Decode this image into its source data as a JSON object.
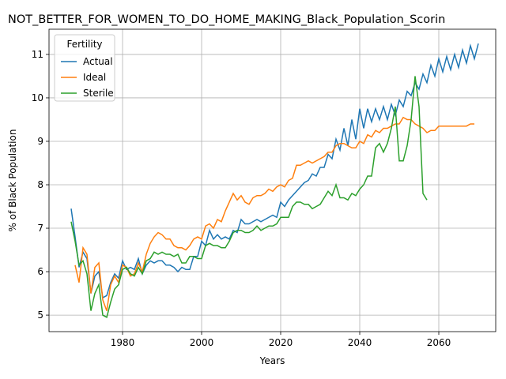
{
  "chart_data": {
    "type": "line",
    "title": "NOT_BETTER_FOR_WOMEN_TO_DO_HOME_MAKING_Black_Population_Scorin",
    "xlabel": "Years",
    "ylabel": "% of Black Population",
    "x": [
      1967,
      1968,
      1969,
      1970,
      1971,
      1972,
      1973,
      1974,
      1975,
      1976,
      1977,
      1978,
      1979,
      1980,
      1981,
      1982,
      1983,
      1984,
      1985,
      1986,
      1987,
      1988,
      1989,
      1990,
      1991,
      1992,
      1993,
      1994,
      1995,
      1996,
      1997,
      1998,
      1999,
      2000,
      2001,
      2002,
      2003,
      2004,
      2005,
      2006,
      2007,
      2008,
      2009,
      2010,
      2011,
      2012,
      2013,
      2014,
      2015,
      2016,
      2017,
      2018,
      2019,
      2020,
      2021,
      2022,
      2023,
      2024,
      2025,
      2026,
      2027,
      2028,
      2029,
      2030,
      2031,
      2032,
      2033,
      2034,
      2035,
      2036,
      2037,
      2038,
      2039,
      2040,
      2041,
      2042,
      2043,
      2044,
      2045,
      2046,
      2047,
      2048,
      2049,
      2050,
      2051,
      2052,
      2053,
      2054,
      2055,
      2056,
      2057,
      2058,
      2059,
      2060,
      2061,
      2062,
      2063,
      2064,
      2065,
      2066,
      2067,
      2068,
      2069,
      2070
    ],
    "series": [
      {
        "name": "Actual",
        "color": "#1f77b4",
        "values": [
          7.45,
          6.8,
          6.1,
          6.45,
          6.3,
          5.5,
          5.9,
          6.0,
          5.4,
          5.45,
          5.75,
          5.95,
          5.85,
          6.25,
          6.05,
          6.1,
          6.05,
          6.3,
          5.95,
          6.15,
          6.25,
          6.2,
          6.25,
          6.25,
          6.15,
          6.15,
          6.1,
          6.0,
          6.1,
          6.05,
          6.05,
          6.35,
          6.35,
          6.7,
          6.6,
          6.95,
          6.75,
          6.85,
          6.75,
          6.8,
          6.75,
          6.95,
          6.9,
          7.2,
          7.1,
          7.1,
          7.15,
          7.2,
          7.15,
          7.2,
          7.25,
          7.3,
          7.25,
          7.6,
          7.5,
          7.65,
          7.75,
          7.85,
          7.95,
          8.05,
          8.1,
          8.25,
          8.2,
          8.4,
          8.4,
          8.7,
          8.6,
          9.05,
          8.8,
          9.3,
          8.9,
          9.5,
          9.05,
          9.75,
          9.3,
          9.75,
          9.45,
          9.75,
          9.5,
          9.8,
          9.5,
          9.85,
          9.6,
          9.95,
          9.8,
          10.15,
          10.05,
          10.35,
          10.2,
          10.55,
          10.35,
          10.75,
          10.5,
          10.9,
          10.6,
          10.95,
          10.65,
          11.0,
          10.7,
          11.1,
          10.8,
          11.2,
          10.9,
          11.25
        ]
      },
      {
        "name": "Ideal",
        "color": "#ff7f0e",
        "values": [
          null,
          6.15,
          5.75,
          6.55,
          6.4,
          5.5,
          6.1,
          6.2,
          5.35,
          5.1,
          5.7,
          5.9,
          5.75,
          6.15,
          6.1,
          5.9,
          5.95,
          6.2,
          6.0,
          6.4,
          6.65,
          6.8,
          6.9,
          6.85,
          6.75,
          6.75,
          6.6,
          6.55,
          6.55,
          6.5,
          6.6,
          6.75,
          6.8,
          6.75,
          7.05,
          7.1,
          7.0,
          7.2,
          7.15,
          7.4,
          7.6,
          7.8,
          7.65,
          7.75,
          7.6,
          7.55,
          7.7,
          7.75,
          7.75,
          7.8,
          7.9,
          7.85,
          7.95,
          8.0,
          7.95,
          8.1,
          8.15,
          8.45,
          8.45,
          8.5,
          8.55,
          8.5,
          8.55,
          8.6,
          8.65,
          8.75,
          8.75,
          8.9,
          8.95,
          8.95,
          8.9,
          8.85,
          8.85,
          9.0,
          8.95,
          9.15,
          9.1,
          9.25,
          9.2,
          9.3,
          9.3,
          9.35,
          9.4,
          9.4,
          9.55,
          9.5,
          9.5,
          9.4,
          9.35,
          9.3,
          9.2,
          9.25,
          9.25,
          9.35,
          9.35,
          9.35,
          9.35,
          9.35,
          9.35,
          9.35,
          9.35,
          9.4,
          9.4,
          null
        ]
      },
      {
        "name": "Sterile",
        "color": "#2ca02c",
        "values": [
          7.15,
          6.7,
          6.15,
          6.25,
          5.95,
          5.1,
          5.5,
          5.7,
          5.0,
          4.95,
          5.3,
          5.6,
          5.7,
          6.05,
          6.1,
          5.95,
          5.9,
          6.1,
          5.95,
          6.25,
          6.3,
          6.45,
          6.4,
          6.45,
          6.4,
          6.4,
          6.35,
          6.4,
          6.2,
          6.2,
          6.35,
          6.35,
          6.3,
          6.3,
          6.6,
          6.65,
          6.6,
          6.6,
          6.55,
          6.55,
          6.7,
          6.9,
          6.95,
          6.95,
          6.9,
          6.9,
          6.95,
          7.05,
          6.95,
          7.0,
          7.05,
          7.05,
          7.1,
          7.25,
          7.25,
          7.25,
          7.5,
          7.6,
          7.6,
          7.55,
          7.55,
          7.45,
          7.5,
          7.55,
          7.7,
          7.85,
          7.75,
          8.0,
          7.7,
          7.7,
          7.65,
          7.8,
          7.75,
          7.9,
          8.0,
          8.2,
          8.2,
          8.85,
          8.95,
          8.75,
          8.95,
          9.3,
          9.8,
          8.55,
          8.55,
          8.9,
          9.5,
          10.5,
          9.8,
          7.8,
          7.65,
          null,
          null,
          null,
          null,
          null,
          null,
          null,
          null,
          null,
          null,
          null,
          null,
          null
        ]
      }
    ],
    "xlim": [
      1961.4,
      2074.4
    ],
    "xticks": [
      1980,
      2000,
      2020,
      2040,
      2060
    ],
    "ylim": [
      4.62,
      11.58
    ],
    "yticks": [
      5,
      6,
      7,
      8,
      9,
      10,
      11
    ],
    "grid": true,
    "legend_title": "Fertility",
    "legend_loc": "upper left"
  }
}
